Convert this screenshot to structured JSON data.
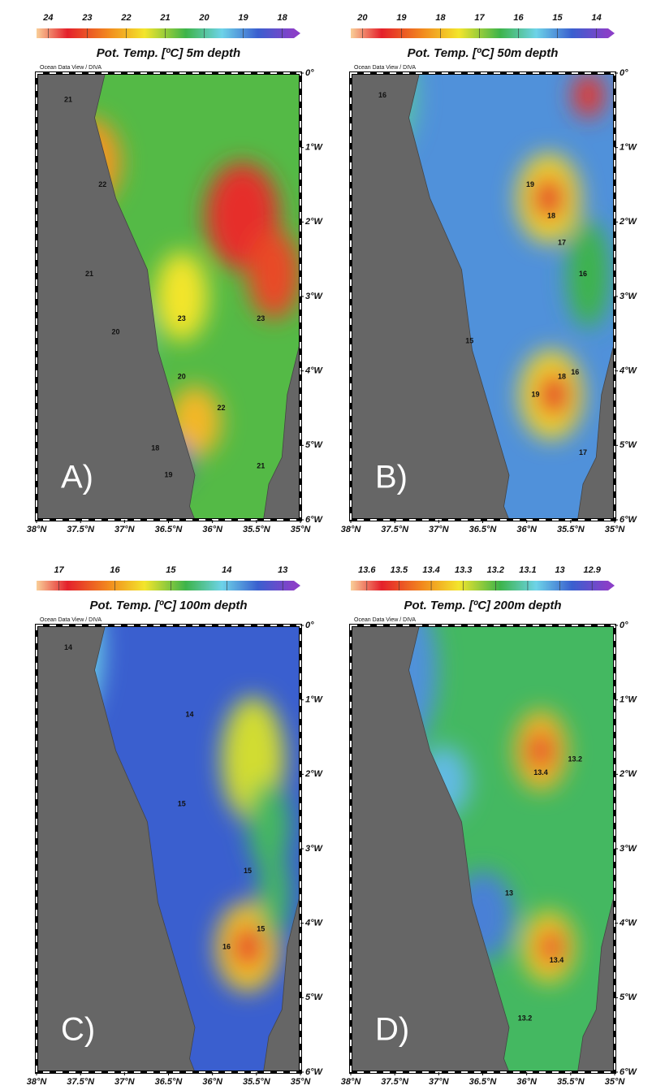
{
  "axes": {
    "lat_ticks": [
      {
        "value": 38,
        "label": "38°N"
      },
      {
        "value": 37.5,
        "label": "37.5°N"
      },
      {
        "value": 37,
        "label": "37°N"
      },
      {
        "value": 36.5,
        "label": "36.5°N"
      },
      {
        "value": 36,
        "label": "36°N"
      },
      {
        "value": 35.5,
        "label": "35.5°N"
      },
      {
        "value": 35,
        "label": "35°N"
      }
    ],
    "lon_ticks": [
      {
        "value": 0,
        "label": "0°"
      },
      {
        "value": -1,
        "label": "1°W"
      },
      {
        "value": -2,
        "label": "2°W"
      },
      {
        "value": -3,
        "label": "3°W"
      },
      {
        "value": -4,
        "label": "4°W"
      },
      {
        "value": -5,
        "label": "5°W"
      },
      {
        "value": -6,
        "label": "6°W"
      }
    ],
    "lat_range": [
      38,
      35
    ],
    "lon_range": [
      0,
      -6
    ]
  },
  "watermark": "Ocean Data View / DIVA",
  "panels": [
    {
      "letter": "A)",
      "title": "Pot. Temp. [ºC] 5m depth",
      "clim": [
        24.3,
        17.7
      ],
      "ticks": [
        24,
        23,
        22,
        21,
        20,
        19,
        18
      ],
      "contour_labels": [
        "21",
        "22",
        "21",
        "20",
        "23",
        "23",
        "20",
        "22",
        "18",
        "19",
        "21"
      ]
    },
    {
      "letter": "B)",
      "title": "Pot. Temp. [ºC] 50m depth",
      "clim": [
        20.3,
        13.7
      ],
      "ticks": [
        20,
        19,
        18,
        17,
        16,
        15,
        14
      ],
      "contour_labels": [
        "16",
        "19",
        "18",
        "17",
        "16",
        "16",
        "15",
        "19",
        "18",
        "17"
      ]
    },
    {
      "letter": "C)",
      "title": "Pot. Temp. [ºC] 100m depth",
      "clim": [
        17.4,
        12.8
      ],
      "ticks": [
        17,
        16,
        15,
        14,
        13
      ],
      "contour_labels": [
        "14",
        "14",
        "15",
        "15",
        "16",
        "15"
      ]
    },
    {
      "letter": "D)",
      "title": "Pot. Temp. [ºC] 200m depth",
      "clim": [
        13.65,
        12.85
      ],
      "ticks": [
        13.6,
        13.5,
        13.4,
        13.3,
        13.2,
        13.1,
        13,
        12.9
      ],
      "contour_labels": [
        "13.4",
        "13.2",
        "13",
        "13.4",
        "13.2"
      ]
    }
  ]
}
